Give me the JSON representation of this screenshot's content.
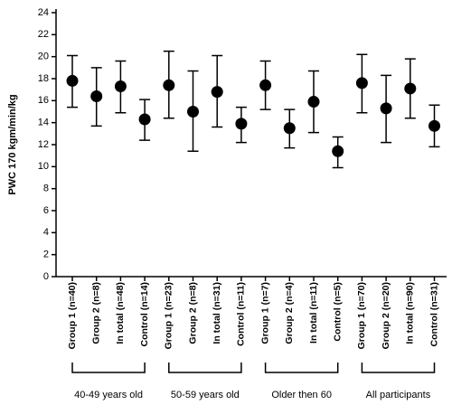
{
  "chart_data": {
    "type": "errorbar",
    "y_label": "PWC 170 kgm/min/kg",
    "categories": [
      "Group 1 (n=40)",
      "Group 2 (n=8)",
      "In total (n=48)",
      "Control (n=14)",
      "Group 1 (n=23)",
      "Group 2 (n=8)",
      "In total (n=31)",
      "Control (n=11)",
      "Group 1 (n=7)",
      "Group 2 (n=4)",
      "In total (n=11)",
      "Control (n=5)",
      "Group 1 (n=70)",
      "Group 2 (n=20)",
      "In total (n=90)",
      "Control (n=31)"
    ],
    "group_labels": [
      "40-49 years old",
      "50-59 years old",
      "Older then 60",
      "All  participants"
    ],
    "values": [
      17.8,
      16.4,
      17.3,
      14.3,
      17.4,
      15.0,
      16.8,
      13.9,
      17.4,
      13.5,
      15.9,
      11.4,
      17.6,
      15.3,
      17.1,
      13.7
    ],
    "upper": [
      20.1,
      19.0,
      19.6,
      16.1,
      20.5,
      18.7,
      20.1,
      15.4,
      19.6,
      15.2,
      18.7,
      12.7,
      20.2,
      18.3,
      19.8,
      15.6
    ],
    "lower": [
      15.4,
      13.7,
      14.9,
      12.4,
      14.4,
      11.4,
      13.6,
      12.2,
      15.2,
      11.7,
      13.1,
      9.9,
      14.9,
      12.2,
      14.4,
      11.8
    ],
    "color": "#000000",
    "ylim": [
      0,
      24
    ],
    "yticks": [
      0,
      2,
      4,
      6,
      8,
      10,
      12,
      14,
      16,
      18,
      20,
      22,
      24
    ],
    "grid": false
  }
}
